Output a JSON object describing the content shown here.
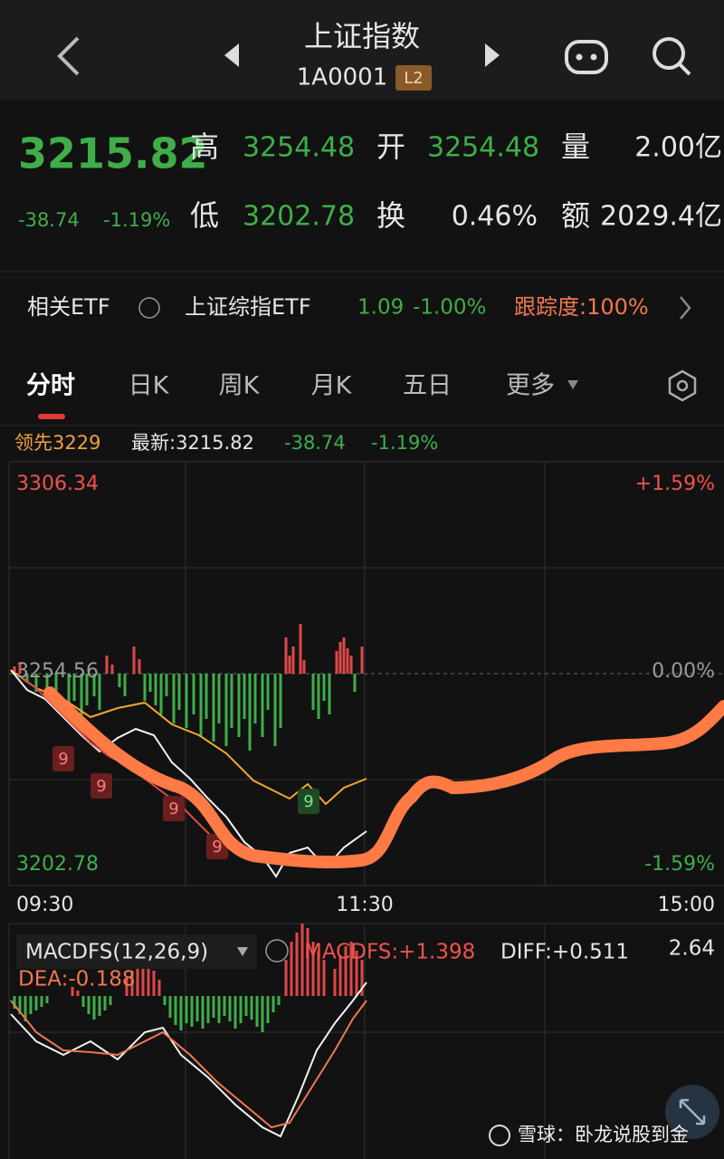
{
  "header": {
    "title": "上证指数",
    "code": "1A0001",
    "badge": "L2"
  },
  "quote": {
    "price": "3215.82",
    "change": "-38.74",
    "change_pct": "-1.19%",
    "high_label": "高",
    "high": "3254.48",
    "open_label": "开",
    "open": "3254.48",
    "volume_label": "量",
    "volume": "2.00亿",
    "low_label": "低",
    "low": "3202.78",
    "turnover_label": "换",
    "turnover": "0.46%",
    "amount_label": "额",
    "amount": "2029.4亿"
  },
  "etf": {
    "label": "相关ETF",
    "name": "上证综指ETF",
    "price": "1.09",
    "change_pct": "-1.00%",
    "tracking": "跟踪度:100%"
  },
  "tabs": [
    "分时",
    "日K",
    "周K",
    "月K",
    "五日",
    "更多"
  ],
  "info": {
    "lead": "领先3229",
    "latest": "最新:3215.82",
    "change": "-38.74",
    "change_pct": "-1.19%"
  },
  "chart": {
    "y_top": "3306.34",
    "pct_top": "+1.59%",
    "y_mid": "3254.56",
    "pct_mid": "0.00%",
    "y_bottom": "3202.78",
    "pct_bottom": "-1.59%",
    "times": [
      "09:30",
      "11:30",
      "15:00"
    ],
    "markers": [
      "9",
      "9",
      "9",
      "9",
      "9"
    ]
  },
  "macd": {
    "name": "MACDFS(12,26,9)",
    "macdfs": "MACDFS:+1.398",
    "diff": "DIFF:+0.511",
    "dea": "DEA:-0.188",
    "scale": "2.64"
  },
  "watermark": "雪球：卧龙说股到金"
}
